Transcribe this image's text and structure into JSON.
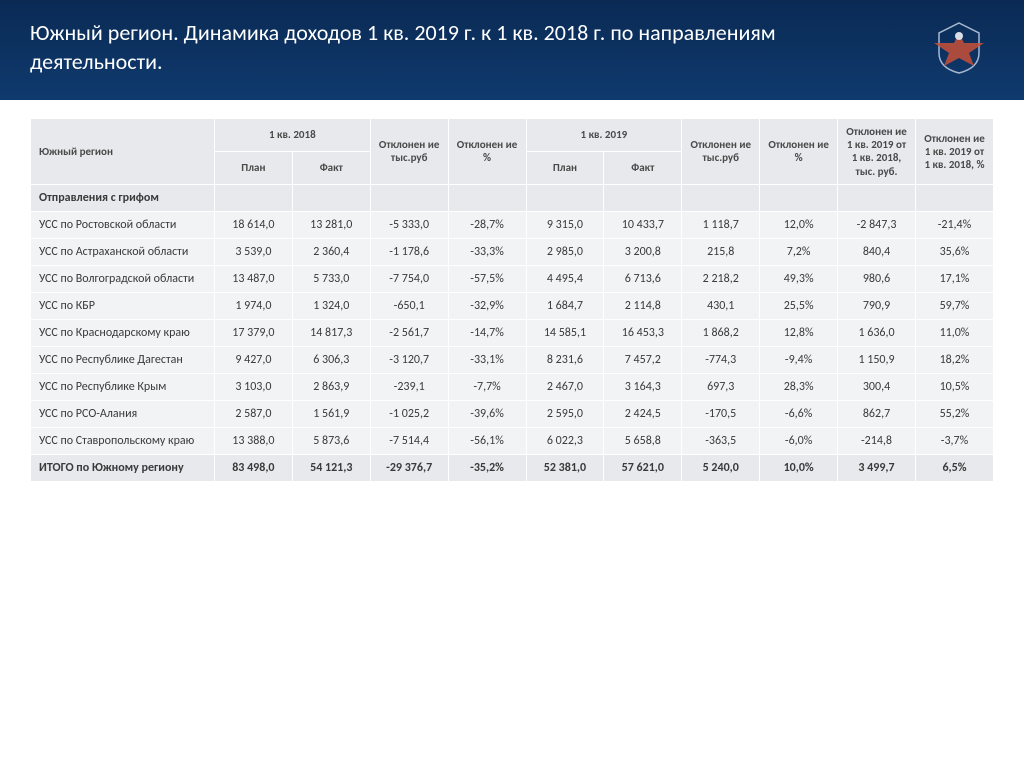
{
  "header": {
    "title": "Южный регион. Динамика доходов 1 кв. 2019 г. к 1 кв. 2018 г. по направлениям деятельности."
  },
  "table": {
    "columns": {
      "region": "Южный регион",
      "q2018": "1 кв. 2018",
      "plan": "План",
      "fact": "Факт",
      "dev_rub": "Отклонен ие тыс.руб",
      "dev_pct": "Отклонен ие %",
      "q2019": "1 кв. 2019",
      "dev_yoy_rub": "Отклонен ие 1 кв. 2019 от 1 кв. 2018, тыс. руб.",
      "dev_yoy_pct": "Отклонен ие 1 кв. 2019 от 1 кв. 2018, %"
    },
    "section": "Отправления с грифом",
    "rows": [
      {
        "label": "УСС по Ростовской области",
        "p18": "18 614,0",
        "f18": "13 281,0",
        "d18r": "-5 333,0",
        "d18p": "-28,7%",
        "p19": "9 315,0",
        "f19": "10 433,7",
        "d19r": "1 118,7",
        "d19p": "12,0%",
        "yr": "-2 847,3",
        "yp": "-21,4%"
      },
      {
        "label": "УСС по Астраханской области",
        "p18": "3 539,0",
        "f18": "2 360,4",
        "d18r": "-1 178,6",
        "d18p": "-33,3%",
        "p19": "2 985,0",
        "f19": "3 200,8",
        "d19r": "215,8",
        "d19p": "7,2%",
        "yr": "840,4",
        "yp": "35,6%"
      },
      {
        "label": "УСС по Волгоградской области",
        "p18": "13 487,0",
        "f18": "5 733,0",
        "d18r": "-7 754,0",
        "d18p": "-57,5%",
        "p19": "4 495,4",
        "f19": "6 713,6",
        "d19r": "2 218,2",
        "d19p": "49,3%",
        "yr": "980,6",
        "yp": "17,1%"
      },
      {
        "label": "УСС по КБР",
        "p18": "1 974,0",
        "f18": "1 324,0",
        "d18r": "-650,1",
        "d18p": "-32,9%",
        "p19": "1 684,7",
        "f19": "2 114,8",
        "d19r": "430,1",
        "d19p": "25,5%",
        "yr": "790,9",
        "yp": "59,7%"
      },
      {
        "label": "УСС по Краснодарскому краю",
        "p18": "17 379,0",
        "f18": "14 817,3",
        "d18r": "-2 561,7",
        "d18p": "-14,7%",
        "p19": "14 585,1",
        "f19": "16 453,3",
        "d19r": "1 868,2",
        "d19p": "12,8%",
        "yr": "1 636,0",
        "yp": "11,0%"
      },
      {
        "label": "УСС по Республике Дагестан",
        "p18": "9 427,0",
        "f18": "6 306,3",
        "d18r": "-3 120,7",
        "d18p": "-33,1%",
        "p19": "8 231,6",
        "f19": "7 457,2",
        "d19r": "-774,3",
        "d19p": "-9,4%",
        "yr": "1 150,9",
        "yp": "18,2%"
      },
      {
        "label": "УСС по Республике Крым",
        "p18": "3 103,0",
        "f18": "2 863,9",
        "d18r": "-239,1",
        "d18p": "-7,7%",
        "p19": "2 467,0",
        "f19": "3 164,3",
        "d19r": "697,3",
        "d19p": "28,3%",
        "yr": "300,4",
        "yp": "10,5%"
      },
      {
        "label": "УСС по РСО-Алания",
        "p18": "2 587,0",
        "f18": "1 561,9",
        "d18r": "-1 025,2",
        "d18p": "-39,6%",
        "p19": "2 595,0",
        "f19": "2 424,5",
        "d19r": "-170,5",
        "d19p": "-6,6%",
        "yr": "862,7",
        "yp": "55,2%"
      },
      {
        "label": "УСС по Ставропольскому краю",
        "p18": "13 388,0",
        "f18": "5 873,6",
        "d18r": "-7 514,4",
        "d18p": "-56,1%",
        "p19": "6 022,3",
        "f19": "5 658,8",
        "d19r": "-363,5",
        "d19p": "-6,0%",
        "yr": "-214,8",
        "yp": "-3,7%"
      }
    ],
    "total": {
      "label": "ИТОГО по Южному региону",
      "p18": "83 498,0",
      "f18": "54 121,3",
      "d18r": "-29 376,7",
      "d18p": "-35,2%",
      "p19": "52 381,0",
      "f19": "57 621,0",
      "d19r": "5 240,0",
      "d19p": "10,0%",
      "yr": "3 499,7",
      "yp": "6,5%"
    }
  },
  "colors": {
    "header_bg": "#0f3a6e",
    "th_bg": "#e7e9ec",
    "row_bg": "#f2f3f5"
  }
}
